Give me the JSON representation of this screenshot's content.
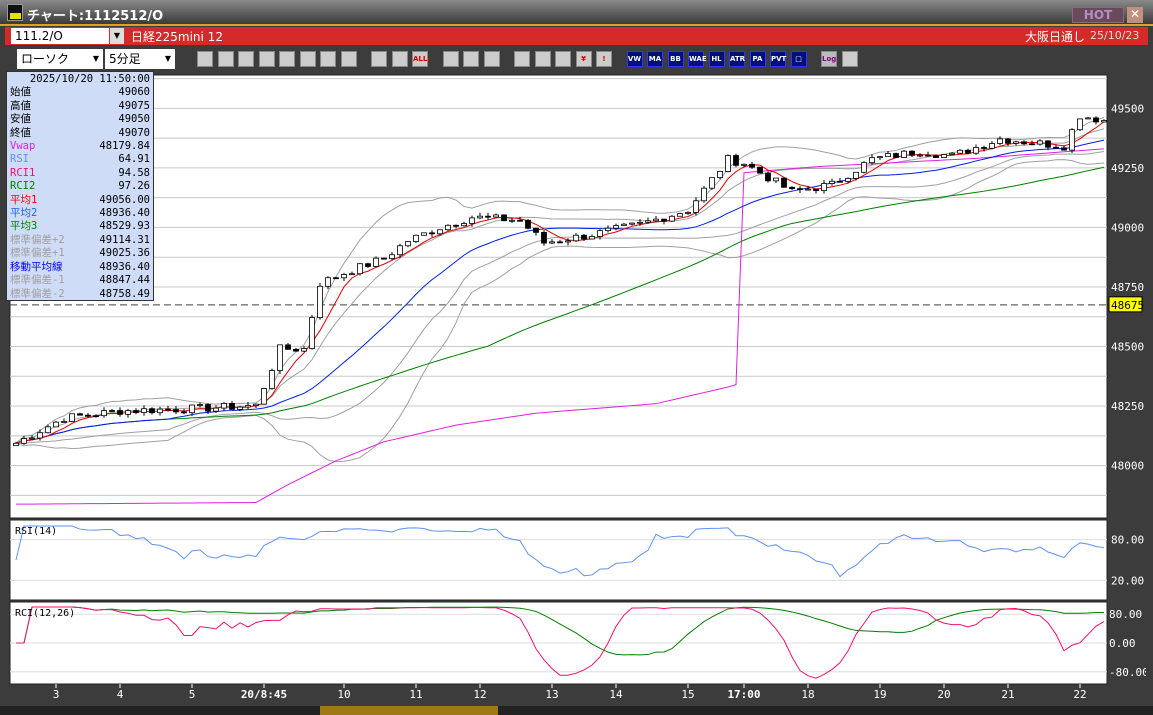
{
  "window": {
    "title": "チャート:1112512/O",
    "hot_label": "HOT",
    "close_label": "✕"
  },
  "symbol_bar": {
    "symbol_value": "111.2/O",
    "symbol_name": "日経225mini 12",
    "exchange": "大阪日通し",
    "date": "25/10/23"
  },
  "toolbar": {
    "chart_type": "ローソク",
    "timeframe": "5分足",
    "buttons": [
      {
        "name": "zoom-icon",
        "label": ""
      },
      {
        "name": "crosshair-icon",
        "label": ""
      },
      {
        "name": "pencil-icon",
        "label": ""
      },
      {
        "name": "line-arrow-icon",
        "label": ""
      },
      {
        "name": "pointer-icon",
        "label": ""
      },
      {
        "name": "eraser-icon",
        "label": ""
      },
      {
        "name": "document-icon",
        "label": ""
      },
      {
        "name": "trash-icon",
        "label": ""
      },
      {
        "name": "candle-expand-icon",
        "label": ""
      },
      {
        "name": "candle-shrink-icon",
        "label": ""
      },
      {
        "name": "all-button",
        "label": "ALL"
      },
      {
        "name": "settings-gear-icon",
        "label": ""
      },
      {
        "name": "wrench-icon",
        "label": ""
      },
      {
        "name": "color-palette-icon",
        "label": ""
      },
      {
        "name": "download-icon",
        "label": ""
      },
      {
        "name": "search-chart-icon",
        "label": ""
      },
      {
        "name": "bar-chart-icon",
        "label": ""
      },
      {
        "name": "yen-icon",
        "label": "¥"
      },
      {
        "name": "warning-icon",
        "label": "!"
      },
      {
        "name": "vwap-button",
        "label": "VW"
      },
      {
        "name": "ma-button",
        "label": "MA"
      },
      {
        "name": "bb-button",
        "label": "BB"
      },
      {
        "name": "wae-button",
        "label": "WAE"
      },
      {
        "name": "hl-button",
        "label": "HL"
      },
      {
        "name": "atr-button",
        "label": "ATR"
      },
      {
        "name": "para-button",
        "label": "PA"
      },
      {
        "name": "pvt-button",
        "label": "PVT"
      },
      {
        "name": "frame-button",
        "label": "□"
      },
      {
        "name": "log-button",
        "label": "Log"
      },
      {
        "name": "export-icon",
        "label": ""
      }
    ]
  },
  "info_panel": {
    "datetime": "2025/10/20  11:50:00",
    "rows": [
      {
        "label": "始値",
        "value": "49060",
        "color": "#000000"
      },
      {
        "label": "高値",
        "value": "49075",
        "color": "#000000"
      },
      {
        "label": "安値",
        "value": "49050",
        "color": "#000000"
      },
      {
        "label": "終値",
        "value": "49070",
        "color": "#000000"
      },
      {
        "label": "Vwap",
        "value": "48179.84",
        "color": "#e020e0"
      },
      {
        "label": "RSI",
        "value": "64.91",
        "color": "#6090f0"
      },
      {
        "label": "RCI1",
        "value": "94.58",
        "color": "#f01070"
      },
      {
        "label": "RCI2",
        "value": "97.26",
        "color": "#008000"
      },
      {
        "label": "平均1",
        "value": "49056.00",
        "color": "#ff0000"
      },
      {
        "label": "平均2",
        "value": "48936.40",
        "color": "#2060f0"
      },
      {
        "label": "平均3",
        "value": "48529.93",
        "color": "#008000"
      },
      {
        "label": "標準偏差+2",
        "value": "49114.31",
        "color": "#a0a0a0"
      },
      {
        "label": "標準偏差+1",
        "value": "49025.36",
        "color": "#a0a0a0"
      },
      {
        "label": "移動平均線",
        "value": "48936.40",
        "color": "#0000ff"
      },
      {
        "label": "標準偏差-1",
        "value": "48847.44",
        "color": "#a0a0a0"
      },
      {
        "label": "標準偏差-2",
        "value": "48758.49",
        "color": "#a0a0a0"
      }
    ]
  },
  "chart_data": {
    "type": "candlestick",
    "price_axis": {
      "ticks": [
        49500,
        49250,
        49000,
        48750,
        48500,
        48250,
        48000
      ],
      "range": [
        47780,
        49640
      ]
    },
    "current_price": "48675",
    "x_labels": [
      {
        "bar": 5,
        "label": "3"
      },
      {
        "bar": 13,
        "label": "4"
      },
      {
        "bar": 22,
        "label": "5"
      },
      {
        "bar": 31,
        "label": "20/8:45"
      },
      {
        "bar": 41,
        "label": "10"
      },
      {
        "bar": 50,
        "label": "11"
      },
      {
        "bar": 58,
        "label": "12"
      },
      {
        "bar": 67,
        "label": "13"
      },
      {
        "bar": 75,
        "label": "14"
      },
      {
        "bar": 84,
        "label": "15"
      },
      {
        "bar": 91,
        "label": "17:00"
      },
      {
        "bar": 99,
        "label": "18"
      },
      {
        "bar": 108,
        "label": "19"
      },
      {
        "bar": 116,
        "label": "20"
      },
      {
        "bar": 124,
        "label": "21"
      },
      {
        "bar": 133,
        "label": "22"
      }
    ],
    "close_path": [
      [
        0,
        48094
      ],
      [
        6,
        48200
      ],
      [
        13,
        48230
      ],
      [
        23,
        48240
      ],
      [
        30,
        48252
      ],
      [
        33,
        48490
      ],
      [
        36,
        48490
      ],
      [
        38,
        48765
      ],
      [
        41,
        48808
      ],
      [
        46,
        48870
      ],
      [
        49,
        48944
      ],
      [
        53,
        49000
      ],
      [
        57,
        49043
      ],
      [
        63,
        49030
      ],
      [
        66,
        48936
      ],
      [
        72,
        48970
      ],
      [
        78,
        49013
      ],
      [
        84,
        49073
      ],
      [
        89,
        49286
      ],
      [
        91,
        49270
      ],
      [
        97,
        49150
      ],
      [
        102,
        49180
      ],
      [
        107,
        49286
      ],
      [
        113,
        49320
      ],
      [
        117,
        49300
      ],
      [
        123,
        49372
      ],
      [
        131,
        49342
      ],
      [
        133,
        49470
      ],
      [
        136,
        49450
      ]
    ],
    "vwap_path": [
      [
        0,
        47838
      ],
      [
        30,
        47845
      ],
      [
        34,
        47920
      ],
      [
        40,
        48020
      ],
      [
        46,
        48100
      ],
      [
        55,
        48170
      ],
      [
        65,
        48220
      ],
      [
        80,
        48260
      ],
      [
        89,
        48330
      ],
      [
        90,
        48340
      ],
      [
        91,
        49230
      ],
      [
        100,
        49255
      ],
      [
        120,
        49290
      ],
      [
        136,
        49330
      ]
    ],
    "rsi": {
      "label": "RSI(14)",
      "ticks": [
        "80.00",
        "20.00"
      ]
    },
    "rci": {
      "label": "RCI(12,26)",
      "ticks": [
        "80.00",
        "0.00",
        "-80.00"
      ]
    },
    "colors": {
      "ma1": "#e00000",
      "ma2": "#0020e0",
      "ma3": "#008000",
      "bb": "#a0a0a0",
      "vwap": "#e020e0",
      "rsi": "#6090f0",
      "rci1": "#f01070",
      "rci2": "#008000"
    }
  }
}
